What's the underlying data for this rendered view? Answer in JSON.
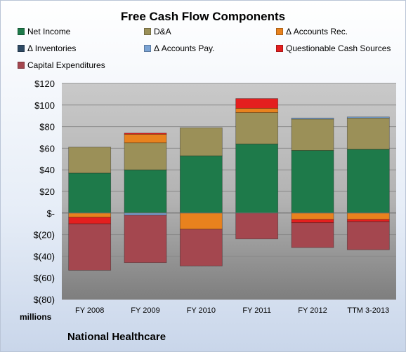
{
  "chart_data": {
    "type": "bar",
    "stacked": true,
    "title": "Free Cash Flow Components",
    "units_label": "millions",
    "company": "National Healthcare",
    "categories": [
      "FY 2008",
      "FY 2009",
      "FY 2010",
      "FY 2011",
      "FY 2012",
      "TTM 3-2013"
    ],
    "ylim": [
      -80,
      120
    ],
    "yticks": [
      {
        "value": 120,
        "label": "$120"
      },
      {
        "value": 100,
        "label": "$100"
      },
      {
        "value": 80,
        "label": "$80"
      },
      {
        "value": 60,
        "label": "$60"
      },
      {
        "value": 40,
        "label": "$40"
      },
      {
        "value": 20,
        "label": "$20"
      },
      {
        "value": 0,
        "label": "$-"
      },
      {
        "value": -20,
        "label": "$(20)"
      },
      {
        "value": -40,
        "label": "$(40)"
      },
      {
        "value": -60,
        "label": "$(60)"
      },
      {
        "value": -80,
        "label": "$(80)"
      }
    ],
    "grid": true,
    "legend_position": "top",
    "series": [
      {
        "name": "Net Income",
        "color": "#1e7a4a",
        "values": [
          37,
          40,
          53,
          64,
          58,
          59
        ]
      },
      {
        "name": "D&A",
        "color": "#9b9058",
        "values": [
          24,
          25,
          26,
          29,
          29,
          29
        ]
      },
      {
        "name": "Δ Accounts Rec.",
        "color": "#e8821e",
        "values": [
          -4,
          8,
          -15,
          4,
          -6,
          -6
        ]
      },
      {
        "name": "Δ Inventories",
        "color": "#2e4a64",
        "values": [
          0,
          0,
          0,
          0,
          0,
          0
        ]
      },
      {
        "name": "Δ Accounts Pay.",
        "color": "#7aa3d4",
        "values": [
          0,
          -2,
          0,
          0,
          1,
          1
        ]
      },
      {
        "name": "Questionable Cash Sources",
        "color": "#e41f1f",
        "values": [
          -6,
          1,
          0,
          9,
          -3,
          -2
        ]
      },
      {
        "name": "Capital Expenditures",
        "color": "#a4474f",
        "values": [
          -43,
          -44,
          -34,
          -24,
          -23,
          -26
        ]
      }
    ]
  }
}
